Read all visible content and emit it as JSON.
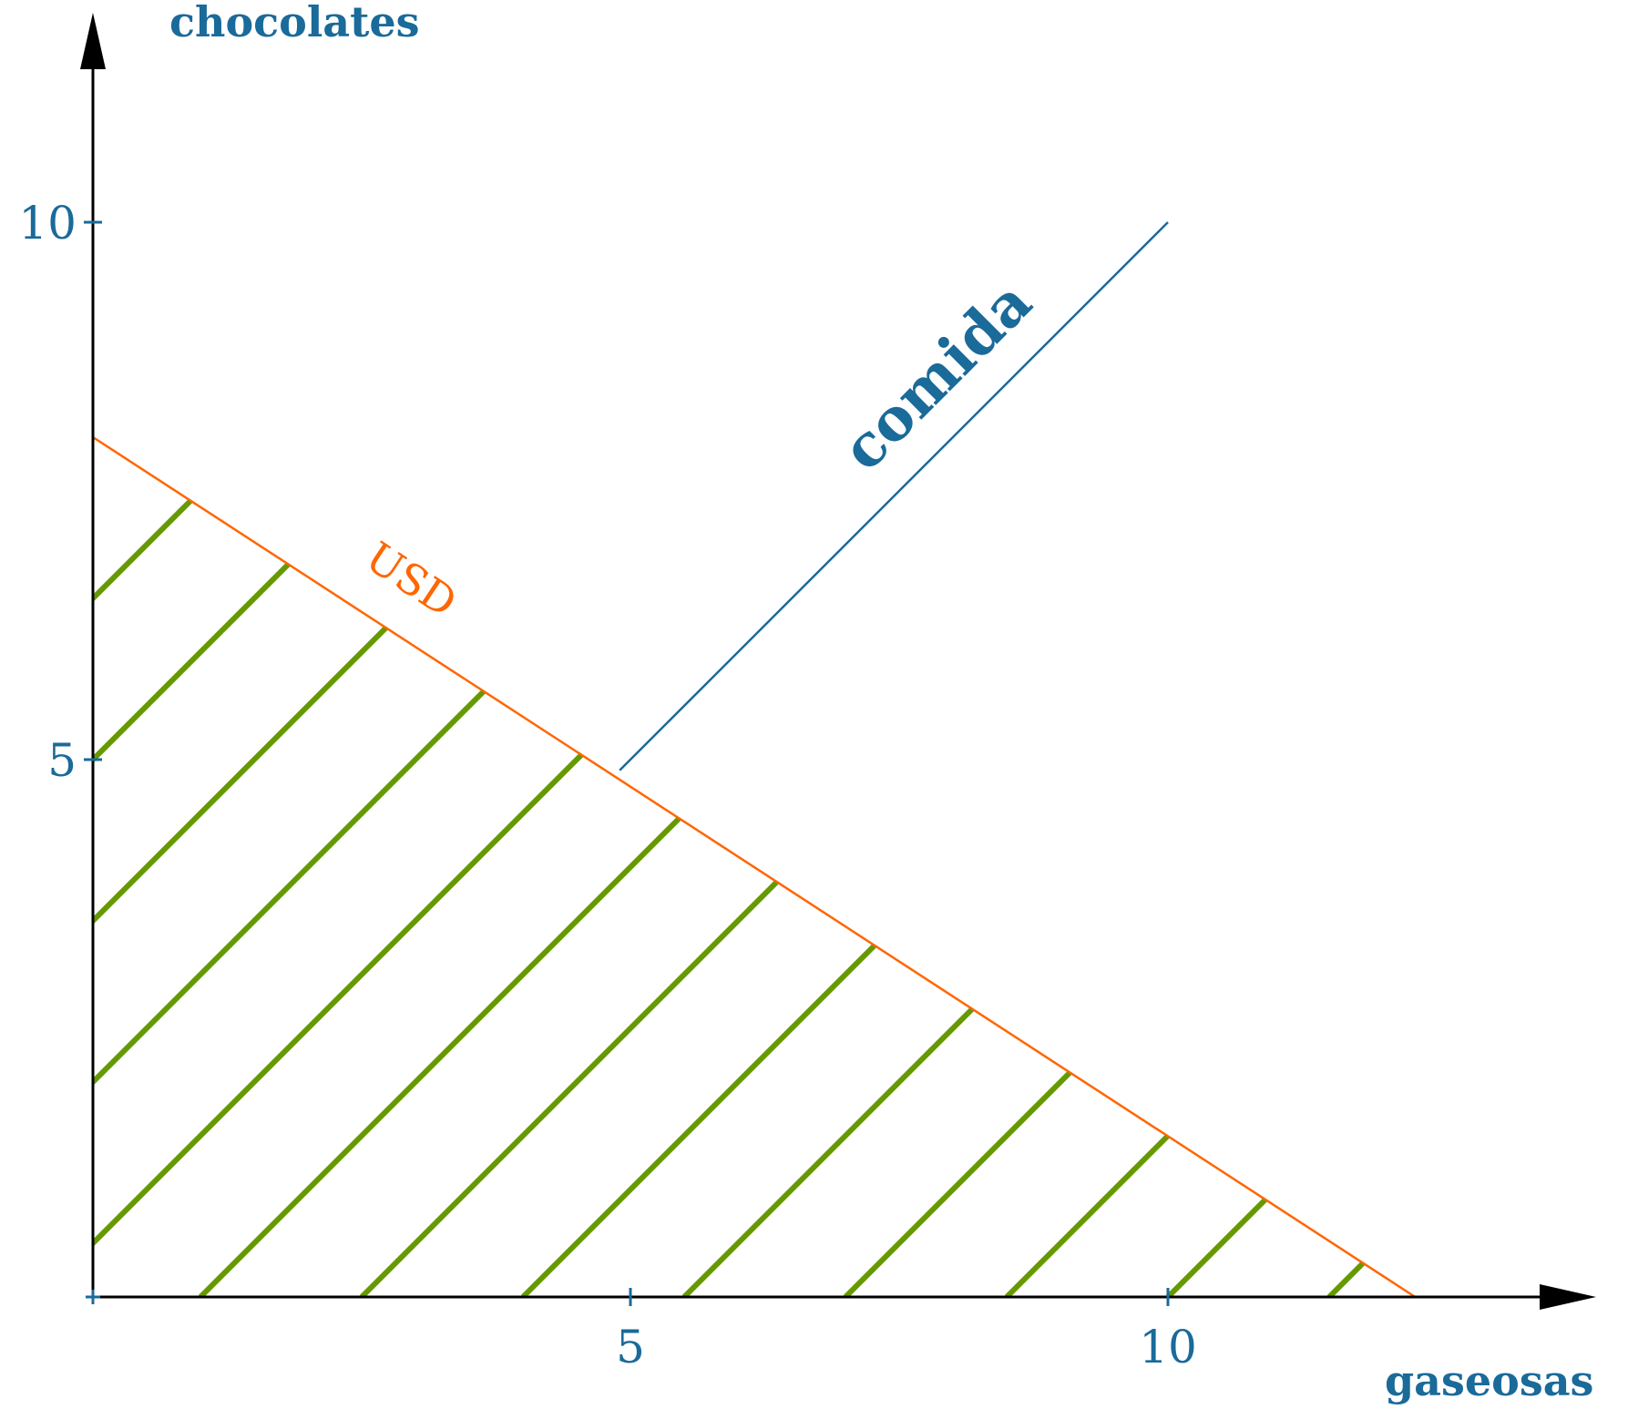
{
  "colors": {
    "axis": "#000000",
    "label": "#1a6a9a",
    "budget_line": "#ff6600",
    "food_line": "#1a6a9a",
    "hatch": "#669900"
  },
  "chart_data": {
    "type": "line",
    "title": "",
    "xlabel": "gaseosas",
    "ylabel": "chocolates",
    "xlim": [
      0,
      14
    ],
    "ylim": [
      0,
      11.5
    ],
    "xticks": [
      5,
      10
    ],
    "xtick_labels": [
      "5",
      "10"
    ],
    "yticks": [
      5,
      10
    ],
    "ytick_labels": [
      "5",
      "10"
    ],
    "grid": false,
    "series": [
      {
        "name": "USD",
        "x": [
          0,
          12.3
        ],
        "y": [
          8,
          0
        ]
      },
      {
        "name": "comida",
        "x": [
          4.9,
          10
        ],
        "y": [
          4.9,
          10
        ]
      }
    ],
    "shaded_region": {
      "description_pattern": "diagonal hatch",
      "vertices": [
        [
          0,
          0
        ],
        [
          12.3,
          0
        ],
        [
          0,
          8
        ]
      ]
    }
  }
}
